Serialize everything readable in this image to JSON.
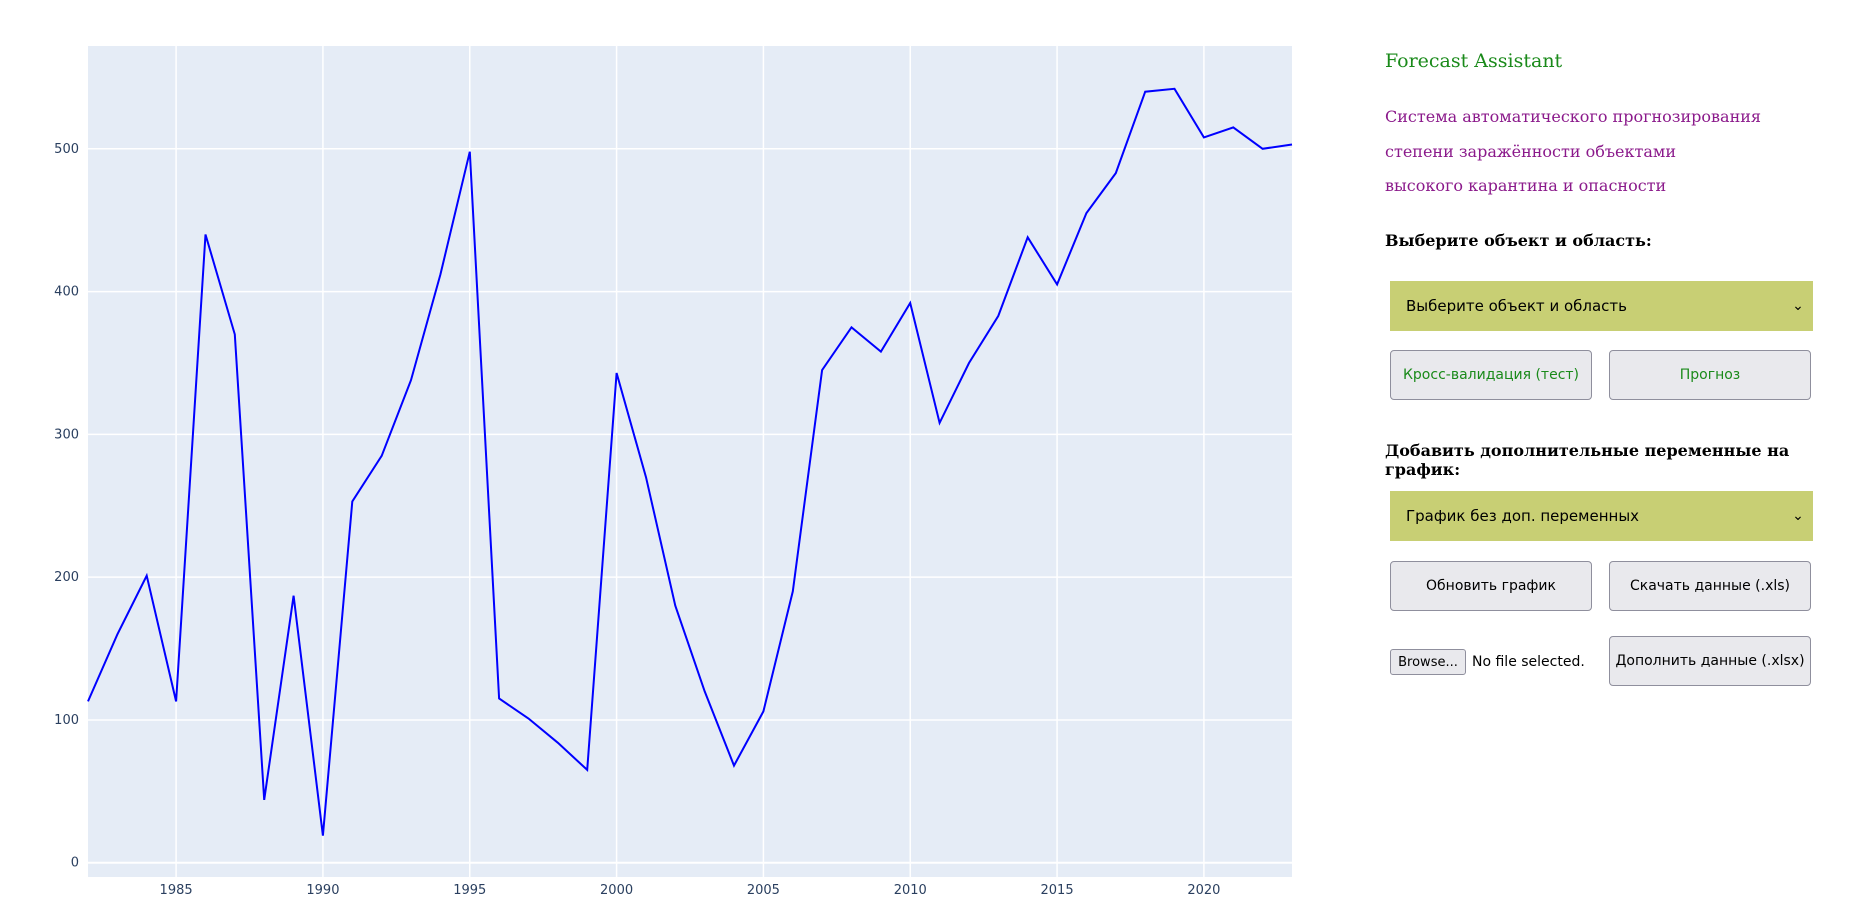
{
  "chart_data": {
    "type": "line",
    "x": [
      1982,
      1983,
      1984,
      1985,
      1986,
      1987,
      1988,
      1989,
      1990,
      1991,
      1992,
      1993,
      1994,
      1995,
      1996,
      1997,
      1998,
      1999,
      2000,
      2001,
      2002,
      2003,
      2004,
      2005,
      2006,
      2007,
      2008,
      2009,
      2010,
      2011,
      2012,
      2013,
      2014,
      2015,
      2016,
      2017,
      2018,
      2019,
      2020,
      2021,
      2022,
      2023
    ],
    "series": [
      {
        "values": [
          113,
          160,
          201,
          113,
          440,
          370,
          44,
          187,
          19,
          253,
          285,
          338,
          412,
          498,
          115,
          101,
          84,
          65,
          343,
          270,
          180,
          120,
          68,
          106,
          190,
          345,
          375,
          358,
          392,
          308,
          350,
          383,
          438,
          405,
          455,
          483,
          540,
          542,
          508,
          515,
          500,
          503
        ],
        "color": "#0000ff"
      }
    ],
    "xlim": [
      1982,
      2023
    ],
    "ylim": [
      -10,
      572
    ],
    "xticks": [
      1985,
      1990,
      1995,
      2000,
      2005,
      2010,
      2015,
      2020
    ],
    "yticks": [
      0,
      100,
      200,
      300,
      400,
      500
    ],
    "grid": true,
    "title": "",
    "xlabel": "",
    "ylabel": ""
  },
  "colors": {
    "plot_bg": "#e5ecf6",
    "grid": "#ffffff",
    "line": "#0000ff",
    "accent_green": "#1a8a1a",
    "accent_purple": "#8b1a8b",
    "select_bg": "#c8cf74"
  },
  "panel": {
    "title": "Forecast Assistant",
    "description": [
      "Система автоматического прогнозирования",
      "степени заражённости объектами",
      "высокого карантина и опасности"
    ],
    "object_label": "Выберите объект и область:",
    "object_select": {
      "value": "Выберите объект и область",
      "icon": "chevron-down-icon"
    },
    "crossval_button": "Кросс-валидация (тест)",
    "forecast_button": "Прогноз",
    "vars_label": "Добавить дополнительные переменные на график:",
    "vars_select": {
      "value": "График без доп. переменных",
      "icon": "chevron-down-icon"
    },
    "update_button": "Обновить график",
    "download_button": "Скачать данные (.xls)",
    "browse_button": "Browse...",
    "file_status": "No file selected.",
    "append_button": "Дополнить данные (.xlsx)"
  }
}
